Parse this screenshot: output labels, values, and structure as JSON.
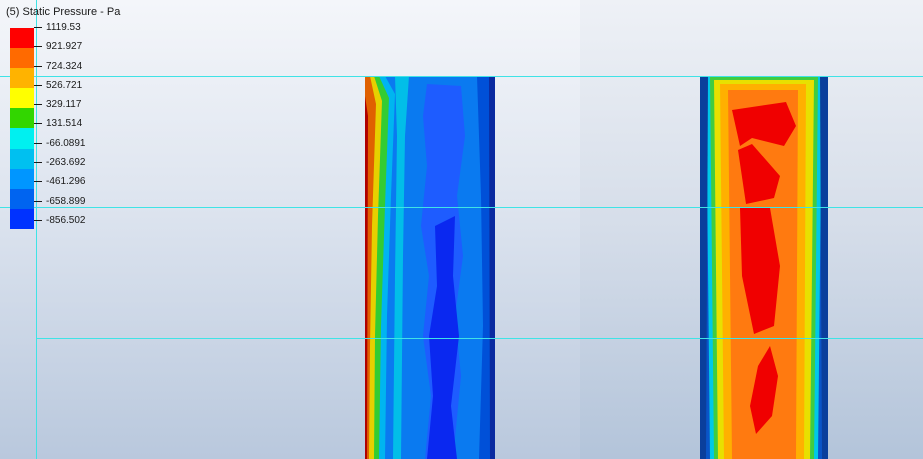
{
  "legend": {
    "title": "(5) Static Pressure - Pa",
    "labels": [
      "1119.53",
      "921.927",
      "724.324",
      "526.721",
      "329.117",
      "131.514",
      "-66.0891",
      "-263.692",
      "-461.296",
      "-658.899",
      "-856.502"
    ],
    "colors": [
      "#ff0000",
      "#ff6a00",
      "#ffb300",
      "#ffff00",
      "#32d600",
      "#00f0f0",
      "#00c0f0",
      "#0096ff",
      "#0064f0",
      "#0032ff",
      "#0000e8"
    ]
  }
}
